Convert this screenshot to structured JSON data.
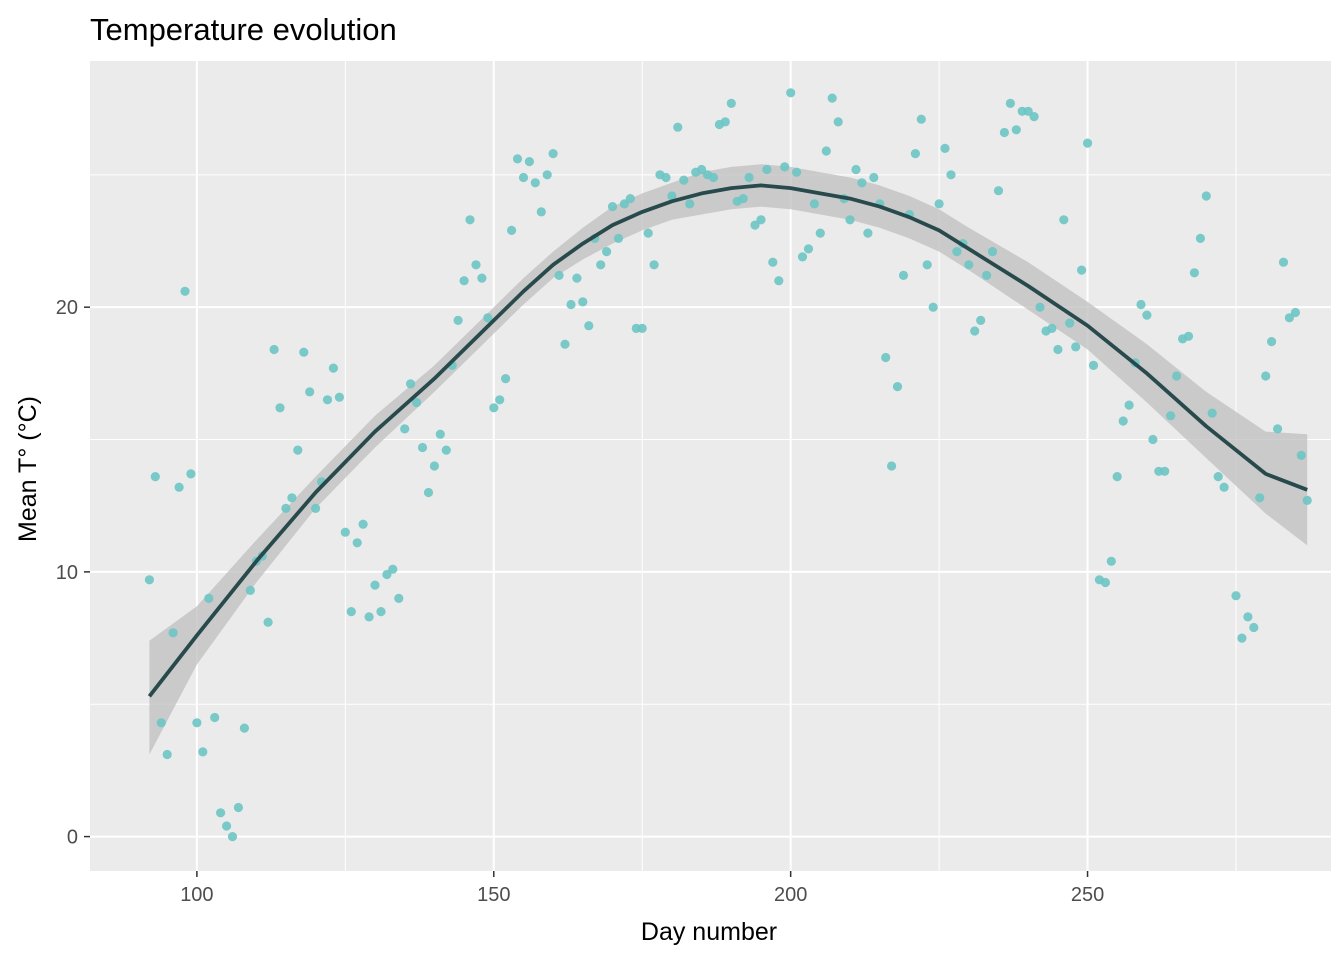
{
  "chart_data": {
    "type": "scatter",
    "title": "Temperature evolution",
    "xlabel": "Day number",
    "ylabel": "Mean T° (°C)",
    "xlim": [
      82,
      291
    ],
    "ylim": [
      -1.3,
      29.3
    ],
    "x_ticks": [
      100,
      150,
      200,
      250
    ],
    "y_ticks": [
      0,
      10,
      20
    ],
    "grid": true,
    "legend": "none",
    "colors": {
      "panel": "#ebebeb",
      "grid": "#ffffff",
      "points": "#6cc5c4",
      "smooth_line": "#284a4c",
      "ribbon": "#bfbfbf"
    },
    "points": [
      [
        92,
        9.7
      ],
      [
        93,
        13.6
      ],
      [
        94,
        4.3
      ],
      [
        95,
        3.1
      ],
      [
        96,
        7.7
      ],
      [
        97,
        13.2
      ],
      [
        98,
        20.6
      ],
      [
        99,
        13.7
      ],
      [
        100,
        4.3
      ],
      [
        101,
        3.2
      ],
      [
        102,
        9.0
      ],
      [
        103,
        4.5
      ],
      [
        104,
        0.9
      ],
      [
        105,
        0.4
      ],
      [
        106,
        0.0
      ],
      [
        107,
        1.1
      ],
      [
        108,
        4.1
      ],
      [
        109,
        9.3
      ],
      [
        110,
        10.4
      ],
      [
        111,
        10.6
      ],
      [
        112,
        8.1
      ],
      [
        113,
        18.4
      ],
      [
        114,
        16.2
      ],
      [
        115,
        12.4
      ],
      [
        116,
        12.8
      ],
      [
        117,
        14.6
      ],
      [
        118,
        18.3
      ],
      [
        119,
        16.8
      ],
      [
        120,
        12.4
      ],
      [
        121,
        13.4
      ],
      [
        122,
        16.5
      ],
      [
        123,
        17.7
      ],
      [
        124,
        16.6
      ],
      [
        125,
        11.5
      ],
      [
        126,
        8.5
      ],
      [
        127,
        11.1
      ],
      [
        128,
        11.8
      ],
      [
        129,
        8.3
      ],
      [
        130,
        9.5
      ],
      [
        131,
        8.5
      ],
      [
        132,
        9.9
      ],
      [
        133,
        10.1
      ],
      [
        134,
        9.0
      ],
      [
        135,
        15.4
      ],
      [
        136,
        17.1
      ],
      [
        137,
        16.4
      ],
      [
        138,
        14.7
      ],
      [
        139,
        13.0
      ],
      [
        140,
        14.0
      ],
      [
        141,
        15.2
      ],
      [
        142,
        14.6
      ],
      [
        143,
        17.8
      ],
      [
        144,
        19.5
      ],
      [
        145,
        21.0
      ],
      [
        146,
        23.3
      ],
      [
        147,
        21.6
      ],
      [
        148,
        21.1
      ],
      [
        149,
        19.6
      ],
      [
        150,
        16.2
      ],
      [
        151,
        16.5
      ],
      [
        152,
        17.3
      ],
      [
        153,
        22.9
      ],
      [
        154,
        25.6
      ],
      [
        155,
        24.9
      ],
      [
        156,
        25.5
      ],
      [
        157,
        24.7
      ],
      [
        158,
        23.6
      ],
      [
        159,
        25.0
      ],
      [
        160,
        25.8
      ],
      [
        161,
        21.2
      ],
      [
        162,
        18.6
      ],
      [
        163,
        20.1
      ],
      [
        164,
        21.1
      ],
      [
        165,
        20.2
      ],
      [
        166,
        19.3
      ],
      [
        167,
        22.6
      ],
      [
        168,
        21.6
      ],
      [
        169,
        22.1
      ],
      [
        170,
        23.8
      ],
      [
        171,
        22.6
      ],
      [
        172,
        23.9
      ],
      [
        173,
        24.1
      ],
      [
        174,
        19.2
      ],
      [
        175,
        19.2
      ],
      [
        176,
        22.8
      ],
      [
        177,
        21.6
      ],
      [
        178,
        25.0
      ],
      [
        179,
        24.9
      ],
      [
        180,
        24.2
      ],
      [
        181,
        26.8
      ],
      [
        182,
        24.8
      ],
      [
        183,
        23.9
      ],
      [
        184,
        25.1
      ],
      [
        185,
        25.2
      ],
      [
        186,
        25.0
      ],
      [
        187,
        24.9
      ],
      [
        188,
        26.9
      ],
      [
        189,
        27.0
      ],
      [
        190,
        27.7
      ],
      [
        191,
        24.0
      ],
      [
        192,
        24.1
      ],
      [
        193,
        24.9
      ],
      [
        194,
        23.1
      ],
      [
        195,
        23.3
      ],
      [
        196,
        25.2
      ],
      [
        197,
        21.7
      ],
      [
        198,
        21.0
      ],
      [
        199,
        25.3
      ],
      [
        200,
        28.1
      ],
      [
        201,
        25.1
      ],
      [
        202,
        21.9
      ],
      [
        203,
        22.2
      ],
      [
        204,
        23.9
      ],
      [
        205,
        22.8
      ],
      [
        206,
        25.9
      ],
      [
        207,
        27.9
      ],
      [
        208,
        27.0
      ],
      [
        209,
        24.1
      ],
      [
        210,
        23.3
      ],
      [
        211,
        25.2
      ],
      [
        212,
        24.7
      ],
      [
        213,
        22.8
      ],
      [
        214,
        24.9
      ],
      [
        215,
        23.9
      ],
      [
        216,
        18.1
      ],
      [
        217,
        14.0
      ],
      [
        218,
        17.0
      ],
      [
        219,
        21.2
      ],
      [
        220,
        23.5
      ],
      [
        221,
        25.8
      ],
      [
        222,
        27.1
      ],
      [
        223,
        21.6
      ],
      [
        224,
        20.0
      ],
      [
        225,
        23.9
      ],
      [
        226,
        26.0
      ],
      [
        227,
        25.0
      ],
      [
        228,
        22.1
      ],
      [
        229,
        22.4
      ],
      [
        230,
        21.6
      ],
      [
        231,
        19.1
      ],
      [
        232,
        19.5
      ],
      [
        233,
        21.2
      ],
      [
        234,
        22.1
      ],
      [
        235,
        24.4
      ],
      [
        236,
        26.6
      ],
      [
        237,
        27.7
      ],
      [
        238,
        26.7
      ],
      [
        239,
        27.4
      ],
      [
        240,
        27.4
      ],
      [
        241,
        27.2
      ],
      [
        242,
        20.0
      ],
      [
        243,
        19.1
      ],
      [
        244,
        19.2
      ],
      [
        245,
        18.4
      ],
      [
        246,
        23.3
      ],
      [
        247,
        19.4
      ],
      [
        248,
        18.5
      ],
      [
        249,
        21.4
      ],
      [
        250,
        26.2
      ],
      [
        251,
        17.8
      ],
      [
        252,
        9.7
      ],
      [
        253,
        9.6
      ],
      [
        254,
        10.4
      ],
      [
        255,
        13.6
      ],
      [
        256,
        15.7
      ],
      [
        257,
        16.3
      ],
      [
        258,
        17.9
      ],
      [
        259,
        20.1
      ],
      [
        260,
        19.7
      ],
      [
        261,
        15.0
      ],
      [
        262,
        13.8
      ],
      [
        263,
        13.8
      ],
      [
        264,
        15.9
      ],
      [
        265,
        17.4
      ],
      [
        266,
        18.8
      ],
      [
        267,
        18.9
      ],
      [
        268,
        21.3
      ],
      [
        269,
        22.6
      ],
      [
        270,
        24.2
      ],
      [
        271,
        16.0
      ],
      [
        272,
        13.6
      ],
      [
        273,
        13.2
      ],
      [
        275,
        9.1
      ],
      [
        276,
        7.5
      ],
      [
        277,
        8.3
      ],
      [
        278,
        7.9
      ],
      [
        279,
        12.8
      ],
      [
        280,
        17.4
      ],
      [
        281,
        18.7
      ],
      [
        282,
        15.4
      ],
      [
        283,
        21.7
      ],
      [
        284,
        19.6
      ],
      [
        285,
        19.8
      ],
      [
        286,
        14.4
      ],
      [
        287,
        12.7
      ]
    ],
    "smooth": {
      "x": [
        92,
        100,
        110,
        120,
        130,
        140,
        150,
        155,
        160,
        165,
        170,
        175,
        180,
        185,
        190,
        195,
        200,
        205,
        210,
        215,
        220,
        225,
        230,
        240,
        250,
        260,
        270,
        280,
        287
      ],
      "y": [
        5.3,
        7.6,
        10.4,
        13.0,
        15.3,
        17.3,
        19.5,
        20.6,
        21.6,
        22.4,
        23.1,
        23.6,
        24.0,
        24.3,
        24.5,
        24.6,
        24.5,
        24.3,
        24.1,
        23.8,
        23.4,
        22.9,
        22.2,
        20.8,
        19.3,
        17.5,
        15.5,
        13.7,
        13.1
      ],
      "lower": [
        3.1,
        6.5,
        9.6,
        12.4,
        14.7,
        16.8,
        19.0,
        20.1,
        21.1,
        21.8,
        22.4,
        22.9,
        23.3,
        23.5,
        23.7,
        23.8,
        23.7,
        23.5,
        23.3,
        23.0,
        22.6,
        22.1,
        21.4,
        19.9,
        18.4,
        16.4,
        14.3,
        12.2,
        11.0
      ],
      "upper": [
        7.4,
        8.7,
        11.2,
        13.6,
        15.9,
        17.8,
        20.0,
        21.1,
        22.1,
        23.0,
        23.8,
        24.3,
        24.7,
        25.1,
        25.3,
        25.4,
        25.3,
        25.1,
        24.9,
        24.6,
        24.2,
        23.7,
        23.0,
        21.7,
        20.2,
        18.6,
        16.8,
        15.3,
        15.2
      ]
    }
  }
}
